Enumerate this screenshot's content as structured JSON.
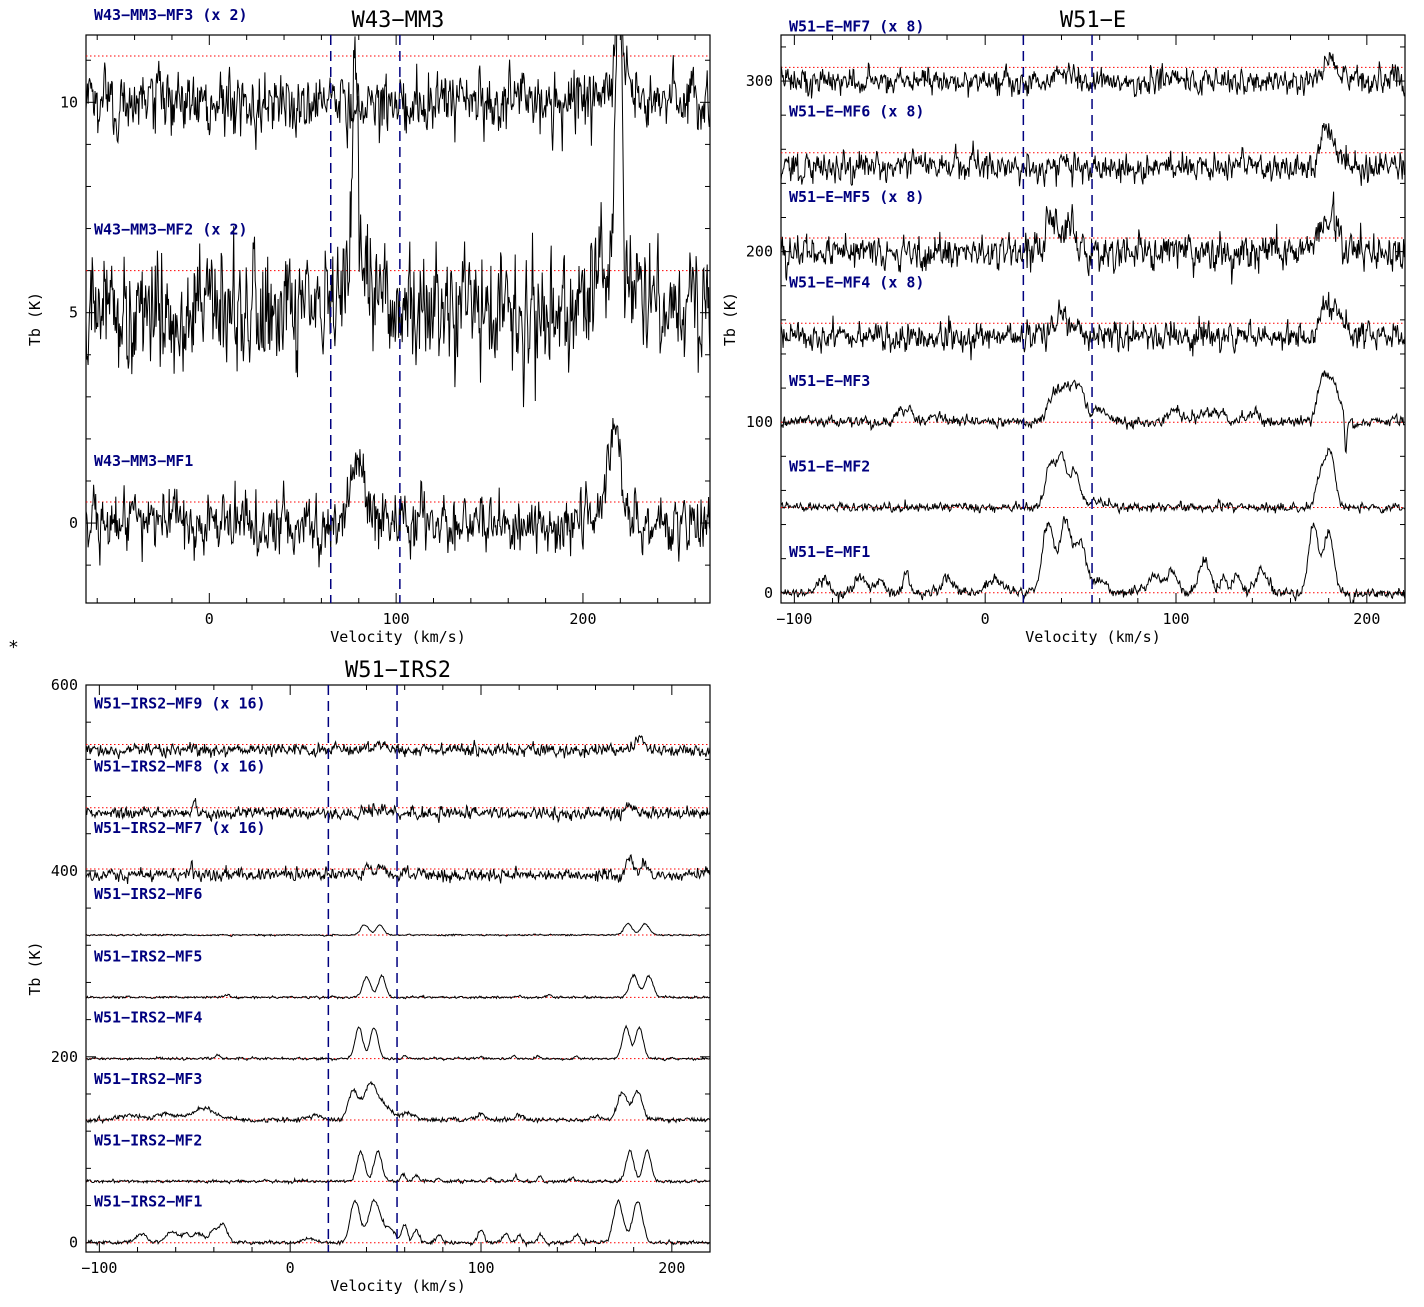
{
  "page": {
    "marker": "*"
  },
  "colors": {
    "label": "#00007f",
    "baseline": "#ff0000",
    "marker_line": "#00007f",
    "spectrum": "#000000"
  },
  "chart_data": [
    {
      "type": "line",
      "title": "W43−MM3",
      "xlabel": "Velocity (km/s)",
      "ylabel": "Tb (K)",
      "xlim": [
        -66,
        268
      ],
      "ylim": [
        -1.9,
        11.6
      ],
      "xticks": [
        0,
        100,
        200
      ],
      "xtick_labels": [
        "0",
        "100",
        "200"
      ],
      "yticks": [
        0,
        5,
        10
      ],
      "ytick_labels": [
        "0",
        "5",
        "10"
      ],
      "show_ylabel": false,
      "vlines": [
        65,
        102
      ],
      "series": [
        {
          "name": "W43−MM3−MF3 (x 2)",
          "offset": 10.0,
          "baseline": 11.1,
          "noise": 0.35,
          "scale": 2,
          "components": [
            [
              219,
              2.5,
              1.6
            ],
            [
              220,
              0.6,
              8
            ]
          ]
        },
        {
          "name": "W43−MM3−MF2 (x 2)",
          "offset": 5.0,
          "baseline": 6.0,
          "noise": 0.65,
          "scale": 2,
          "components": [
            [
              78,
              5.0,
              1.4
            ],
            [
              84,
              1.0,
              8
            ],
            [
              219,
              7.5,
              1.6
            ],
            [
              219,
              1.2,
              8
            ]
          ]
        },
        {
          "name": "W43−MM3−MF1",
          "offset": 0.0,
          "baseline": 0.5,
          "noise": 0.33,
          "scale": 1,
          "components": [
            [
              76,
              1.0,
              3
            ],
            [
              82,
              1.2,
              3.5
            ],
            [
              217,
              1.7,
              3
            ],
            [
              214,
              0.6,
              6
            ],
            [
              -19,
              0.9,
              1.2
            ]
          ]
        }
      ]
    },
    {
      "type": "line",
      "title": "W51−E",
      "xlabel": "Velocity (km/s)",
      "ylabel": "Tb (K)",
      "xlim": [
        -107,
        220
      ],
      "ylim": [
        -6,
        327
      ],
      "xticks": [
        -100,
        0,
        100,
        200
      ],
      "xtick_labels": [
        "−100",
        "0",
        "100",
        "200"
      ],
      "yticks": [
        0,
        100,
        200,
        300
      ],
      "ytick_labels": [
        "0",
        "100",
        "200",
        "300"
      ],
      "show_ylabel": true,
      "vlines": [
        20,
        56
      ],
      "series": [
        {
          "name": "W51−E−MF7 (x 8)",
          "offset": 300,
          "baseline": 308,
          "noise": 3.5,
          "scale": 8,
          "components": [
            [
              42,
              8,
              4
            ],
            [
              181,
              15,
              3
            ]
          ]
        },
        {
          "name": "W51−E−MF6 (x 8)",
          "offset": 250,
          "baseline": 258,
          "noise": 4,
          "scale": 8,
          "components": [
            [
              44,
              4,
              5
            ],
            [
              178,
              22,
              2
            ],
            [
              183,
              10,
              3
            ]
          ]
        },
        {
          "name": "W51−E−MF5 (x 8)",
          "offset": 200,
          "baseline": 208,
          "noise": 5,
          "scale": 8,
          "components": [
            [
              35,
              18,
              2.5
            ],
            [
              44,
              16,
              3
            ],
            [
              177,
              15,
              2.5
            ],
            [
              183,
              22,
              2.5
            ]
          ]
        },
        {
          "name": "W51−E−MF4 (x 8)",
          "offset": 150,
          "baseline": 158,
          "noise": 4,
          "scale": 8,
          "components": [
            [
              40,
              12,
              3
            ],
            [
              47,
              8,
              3
            ],
            [
              178,
              18,
              2.5
            ],
            [
              184,
              12,
              3
            ]
          ]
        },
        {
          "name": "W51−E−MF3",
          "offset": 100,
          "baseline": 100,
          "noise": 1.5,
          "scale": 1,
          "components": [
            [
              36,
              15,
              3
            ],
            [
              44,
              22,
              4
            ],
            [
              50,
              12,
              3
            ],
            [
              60,
              8,
              4
            ],
            [
              -45,
              6,
              2
            ],
            [
              -40,
              8,
              2
            ],
            [
              -25,
              5,
              3
            ],
            [
              100,
              6,
              4
            ],
            [
              115,
              5,
              4
            ],
            [
              124,
              5,
              3
            ],
            [
              140,
              5,
              4
            ],
            [
              177,
              25,
              3
            ],
            [
              183,
              20,
              3
            ],
            [
              189,
              -22,
              0.6
            ]
          ]
        },
        {
          "name": "W51−E−MF2",
          "offset": 50,
          "baseline": 50,
          "noise": 1.2,
          "scale": 1,
          "components": [
            [
              34,
              25,
              2.5
            ],
            [
              40,
              30,
              2.5
            ],
            [
              47,
              20,
              2.5
            ],
            [
              176,
              20,
              2.5
            ],
            [
              181,
              30,
              2.5
            ],
            [
              60,
              3,
              5
            ]
          ]
        },
        {
          "name": "W51−E−MF1",
          "offset": 0,
          "baseline": 0,
          "noise": 1.5,
          "scale": 1,
          "components": [
            [
              33,
              40,
              3
            ],
            [
              42,
              42,
              3
            ],
            [
              50,
              30,
              3
            ],
            [
              -85,
              8,
              3
            ],
            [
              -65,
              9,
              3
            ],
            [
              -55,
              7,
              2
            ],
            [
              -41,
              12,
              1.5
            ],
            [
              -20,
              8,
              3
            ],
            [
              5,
              8,
              4
            ],
            [
              60,
              8,
              3
            ],
            [
              89,
              10,
              3
            ],
            [
              98,
              12,
              3
            ],
            [
              115,
              18,
              3
            ],
            [
              125,
              8,
              2
            ],
            [
              132,
              10,
              2
            ],
            [
              145,
              15,
              3
            ],
            [
              172,
              40,
              2.5
            ],
            [
              180,
              35,
              2.5
            ],
            [
              192,
              -8,
              0.6
            ]
          ]
        }
      ]
    },
    {
      "type": "line",
      "title": "W51−IRS2",
      "xlabel": "Velocity (km/s)",
      "ylabel": "Tb (K)",
      "xlim": [
        -107,
        220
      ],
      "ylim": [
        -10,
        600
      ],
      "xticks": [
        -100,
        0,
        100,
        200
      ],
      "xtick_labels": [
        "−100",
        "0",
        "100",
        "200"
      ],
      "yticks": [
        0,
        200,
        400,
        600
      ],
      "ytick_labels": [
        "0",
        "200",
        "400",
        "600"
      ],
      "show_ylabel": true,
      "vlines": [
        20,
        56
      ],
      "series": [
        {
          "name": "W51−IRS2−MF9 (x 16)",
          "offset": 530,
          "baseline": 536,
          "noise": 3,
          "scale": 16,
          "components": [
            [
              183,
              14,
              2.5
            ],
            [
              45,
              4,
              4
            ]
          ]
        },
        {
          "name": "W51−IRS2−MF8 (x 16)",
          "offset": 462,
          "baseline": 468,
          "noise": 3,
          "scale": 16,
          "components": [
            [
              -50,
              16,
              0.7
            ],
            [
              178,
              8,
              3
            ],
            [
              45,
              5,
              4
            ]
          ]
        },
        {
          "name": "W51−IRS2−MF7 (x 16)",
          "offset": 396,
          "baseline": 402,
          "noise": 3,
          "scale": 16,
          "components": [
            [
              -52,
              14,
              0.7
            ],
            [
              41,
              10,
              2
            ],
            [
              48,
              9,
              2
            ],
            [
              178,
              20,
              2
            ],
            [
              186,
              10,
              2
            ]
          ]
        },
        {
          "name": "W51−IRS2−MF6",
          "offset": 331,
          "baseline": 331,
          "noise": 0.4,
          "scale": 1,
          "components": [
            [
              39,
              11,
              2
            ],
            [
              47,
              11,
              2
            ],
            [
              177,
              12,
              2.2
            ],
            [
              186,
              12,
              2.2
            ]
          ]
        },
        {
          "name": "W51−IRS2−MF5",
          "offset": 264,
          "baseline": 264,
          "noise": 0.6,
          "scale": 1,
          "components": [
            [
              40,
              22,
              2
            ],
            [
              48,
              23,
              2
            ],
            [
              180,
              24,
              2.2
            ],
            [
              188,
              23,
              2.2
            ],
            [
              136,
              3,
              1
            ],
            [
              120,
              2,
              1
            ],
            [
              -33,
              3,
              1.5
            ]
          ]
        },
        {
          "name": "W51−IRS2−MF4",
          "offset": 198,
          "baseline": 198,
          "noise": 0.6,
          "scale": 1,
          "components": [
            [
              36,
              34,
              2
            ],
            [
              44,
              34,
              2
            ],
            [
              176,
              34,
              2
            ],
            [
              183,
              34,
              2
            ],
            [
              60,
              3,
              1
            ],
            [
              100,
              2,
              1
            ],
            [
              117,
              3,
              1
            ],
            [
              130,
              3,
              1
            ],
            [
              150,
              3,
              1
            ],
            [
              -38,
              3,
              1.5
            ]
          ]
        },
        {
          "name": "W51−IRS2−MF3",
          "offset": 132,
          "baseline": 132,
          "noise": 1.2,
          "scale": 1,
          "components": [
            [
              33,
              32,
              2.5
            ],
            [
              42,
              38,
              3.5
            ],
            [
              50,
              14,
              4
            ],
            [
              62,
              8,
              3
            ],
            [
              100,
              8,
              2
            ],
            [
              120,
              6,
              2
            ],
            [
              160,
              5,
              2
            ],
            [
              174,
              30,
              2.5
            ],
            [
              182,
              32,
              2.5
            ],
            [
              -45,
              12,
              6
            ],
            [
              -65,
              6,
              6
            ],
            [
              -85,
              5,
              6
            ],
            [
              13,
              5,
              4
            ]
          ]
        },
        {
          "name": "W51−IRS2−MF2",
          "offset": 66,
          "baseline": 66,
          "noise": 0.8,
          "scale": 1,
          "components": [
            [
              37,
              32,
              2
            ],
            [
              46,
              32,
              2
            ],
            [
              59,
              8,
              1.2
            ],
            [
              66,
              6,
              1.2
            ],
            [
              78,
              3,
              1
            ],
            [
              105,
              4,
              1
            ],
            [
              118,
              6,
              1
            ],
            [
              131,
              6,
              1
            ],
            [
              148,
              4,
              1
            ],
            [
              178,
              33,
              2
            ],
            [
              187,
              33,
              2
            ]
          ]
        },
        {
          "name": "W51−IRS2−MF1",
          "offset": 0,
          "baseline": 0,
          "noise": 1,
          "scale": 1,
          "components": [
            [
              34,
              45,
              2.5
            ],
            [
              44,
              45,
              3
            ],
            [
              52,
              15,
              3
            ],
            [
              60,
              20,
              1.5
            ],
            [
              66,
              14,
              1.5
            ],
            [
              78,
              8,
              1.5
            ],
            [
              100,
              15,
              1.5
            ],
            [
              113,
              10,
              1.5
            ],
            [
              120,
              8,
              1.5
            ],
            [
              131,
              8,
              1.5
            ],
            [
              150,
              8,
              1.5
            ],
            [
              172,
              45,
              2.5
            ],
            [
              182,
              45,
              2.5
            ],
            [
              -40,
              15,
              2
            ],
            [
              -35,
              20,
              2
            ],
            [
              -48,
              10,
              3
            ],
            [
              -62,
              12,
              3
            ],
            [
              -78,
              10,
              3
            ],
            [
              -55,
              8,
              2
            ],
            [
              10,
              5,
              3
            ]
          ]
        }
      ]
    }
  ]
}
